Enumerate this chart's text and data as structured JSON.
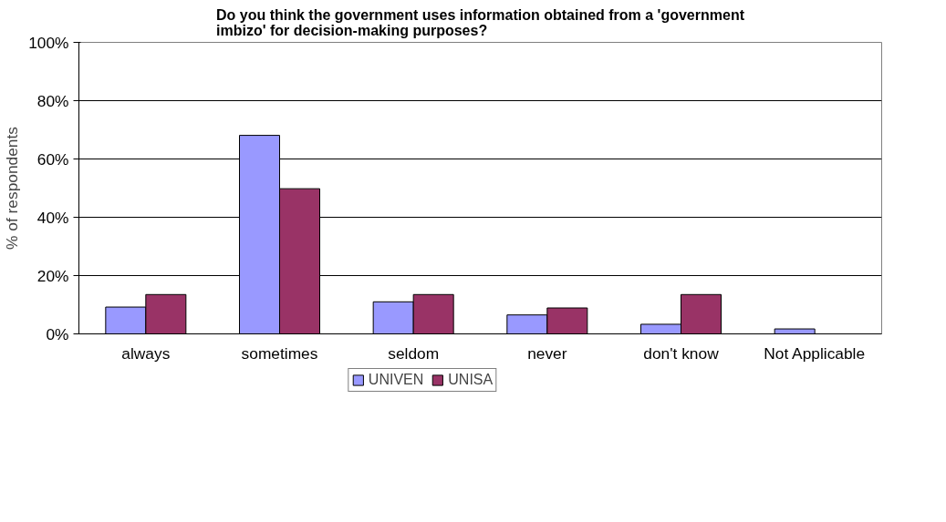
{
  "chart_data": {
    "type": "bar",
    "title": "Do you think the government uses information obtained from a 'government\nimbizo' for decision-making purposes?",
    "ylabel": "% of respondents",
    "categories": [
      "always",
      "sometimes",
      "seldom",
      "never",
      "don't know",
      "Not Applicable"
    ],
    "series": [
      {
        "name": "UNIVEN",
        "color": "#9999ff",
        "values": [
          9.2,
          68.1,
          11.0,
          6.5,
          3.3,
          1.7
        ]
      },
      {
        "name": "UNISA",
        "color": "#993366",
        "values": [
          13.5,
          49.8,
          13.5,
          8.9,
          13.5,
          0
        ]
      }
    ],
    "ylim": [
      0,
      100
    ],
    "yticks": [
      {
        "value": 0,
        "label": "0%"
      },
      {
        "value": 20,
        "label": "20%"
      },
      {
        "value": 40,
        "label": "40%"
      },
      {
        "value": 60,
        "label": "60%"
      },
      {
        "value": 80,
        "label": "80%"
      },
      {
        "value": 100,
        "label": "100%"
      }
    ],
    "grid": "y",
    "legend": "bottom"
  }
}
